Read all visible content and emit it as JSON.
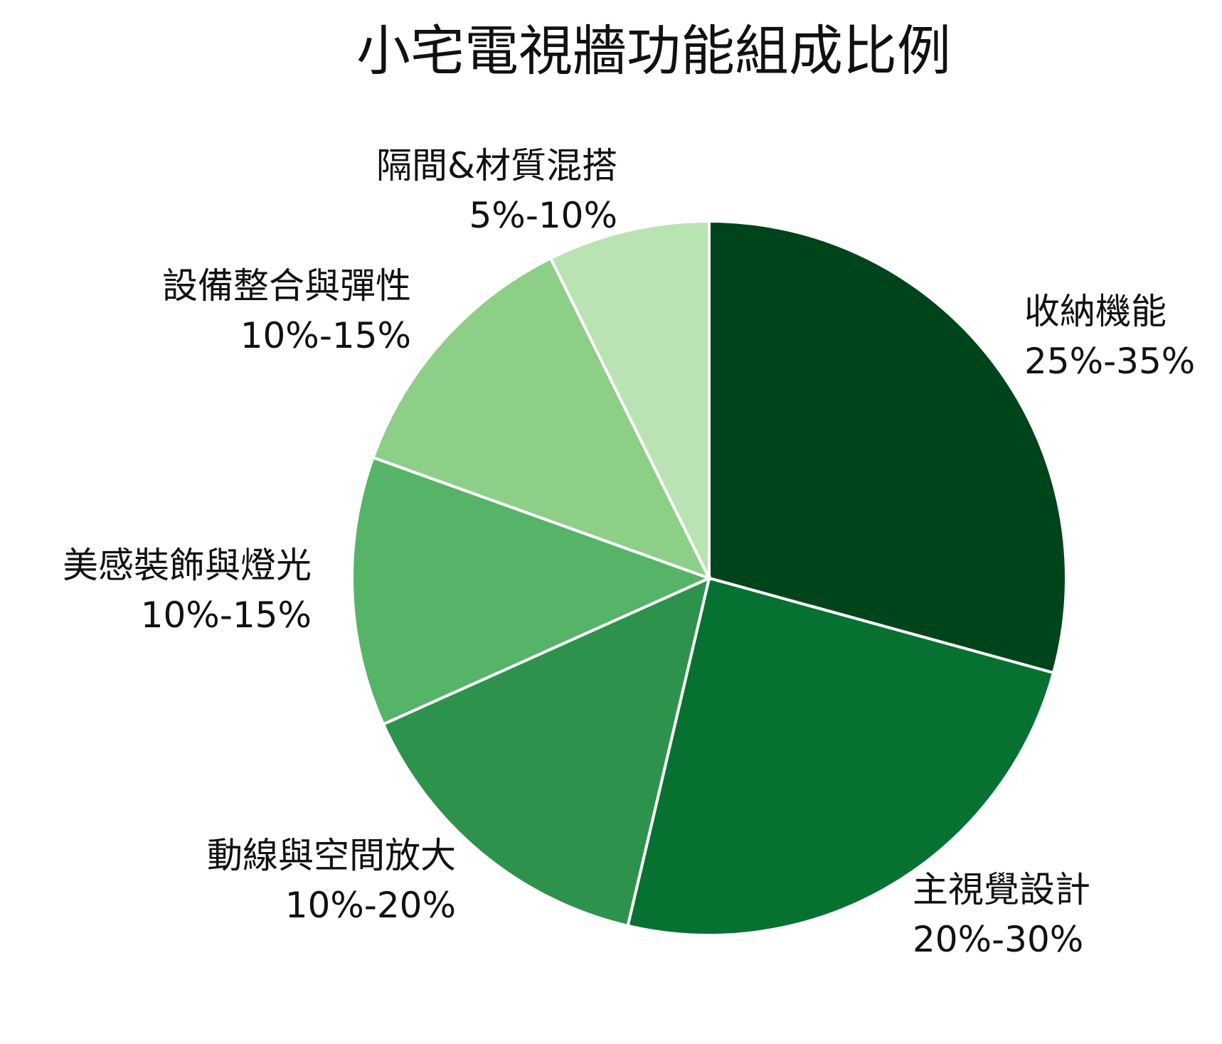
{
  "chart_data": {
    "type": "pie",
    "title": "小宅電視牆功能組成比例",
    "start_angle": "top",
    "direction": "clockwise",
    "slices": [
      {
        "label": "收納機能",
        "range": "25%-35%",
        "value": 30,
        "color": "#00441b"
      },
      {
        "label": "主視覺設計",
        "range": "20%-30%",
        "value": 25,
        "color": "#067131"
      },
      {
        "label": "動線與空間放大",
        "range": "10%-20%",
        "value": 15,
        "color": "#2d934c"
      },
      {
        "label": "美感裝飾與燈光",
        "range": "10%-15%",
        "value": 12.5,
        "color": "#56b468"
      },
      {
        "label": "設備整合與彈性",
        "range": "10%-15%",
        "value": 12.5,
        "color": "#8ecf88"
      },
      {
        "label": "隔間&材質混搭",
        "range": "5%-10%",
        "value": 7.5,
        "color": "#b9e3b2"
      }
    ],
    "legend": "none"
  }
}
